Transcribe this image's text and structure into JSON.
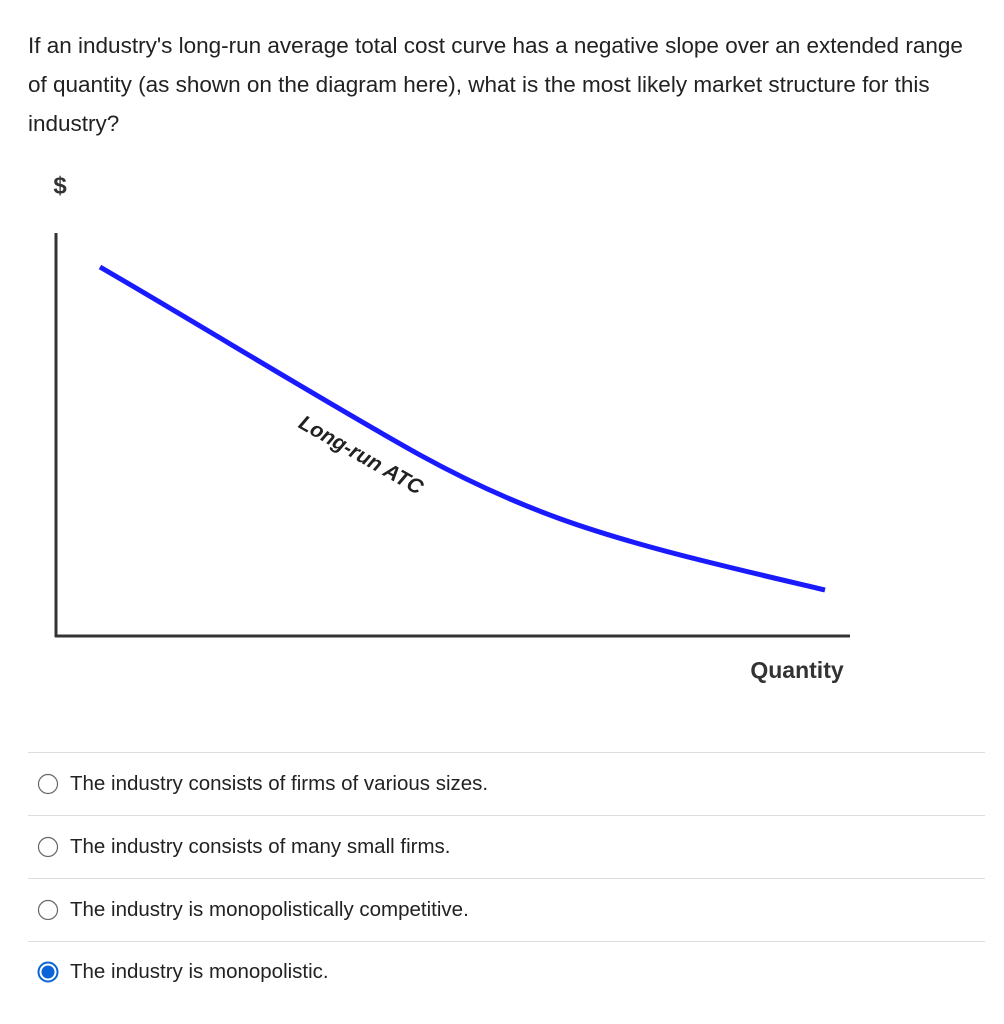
{
  "question": "If an industry's long-run average total cost curve has a negative slope over an extended range of quantity (as shown on the diagram here), what is the most likely market structure for this industry?",
  "diagram": {
    "y_axis_label": "$",
    "x_axis_label": "Quantity",
    "curve_label": "Long-run ATC"
  },
  "options": [
    {
      "text": "The industry consists of firms of various sizes.",
      "checked": false
    },
    {
      "text": "The industry consists of many small firms.",
      "checked": false
    },
    {
      "text": "The industry is monopolistically competitive.",
      "checked": false
    },
    {
      "text": "The industry is monopolistic.",
      "checked": true
    }
  ]
}
